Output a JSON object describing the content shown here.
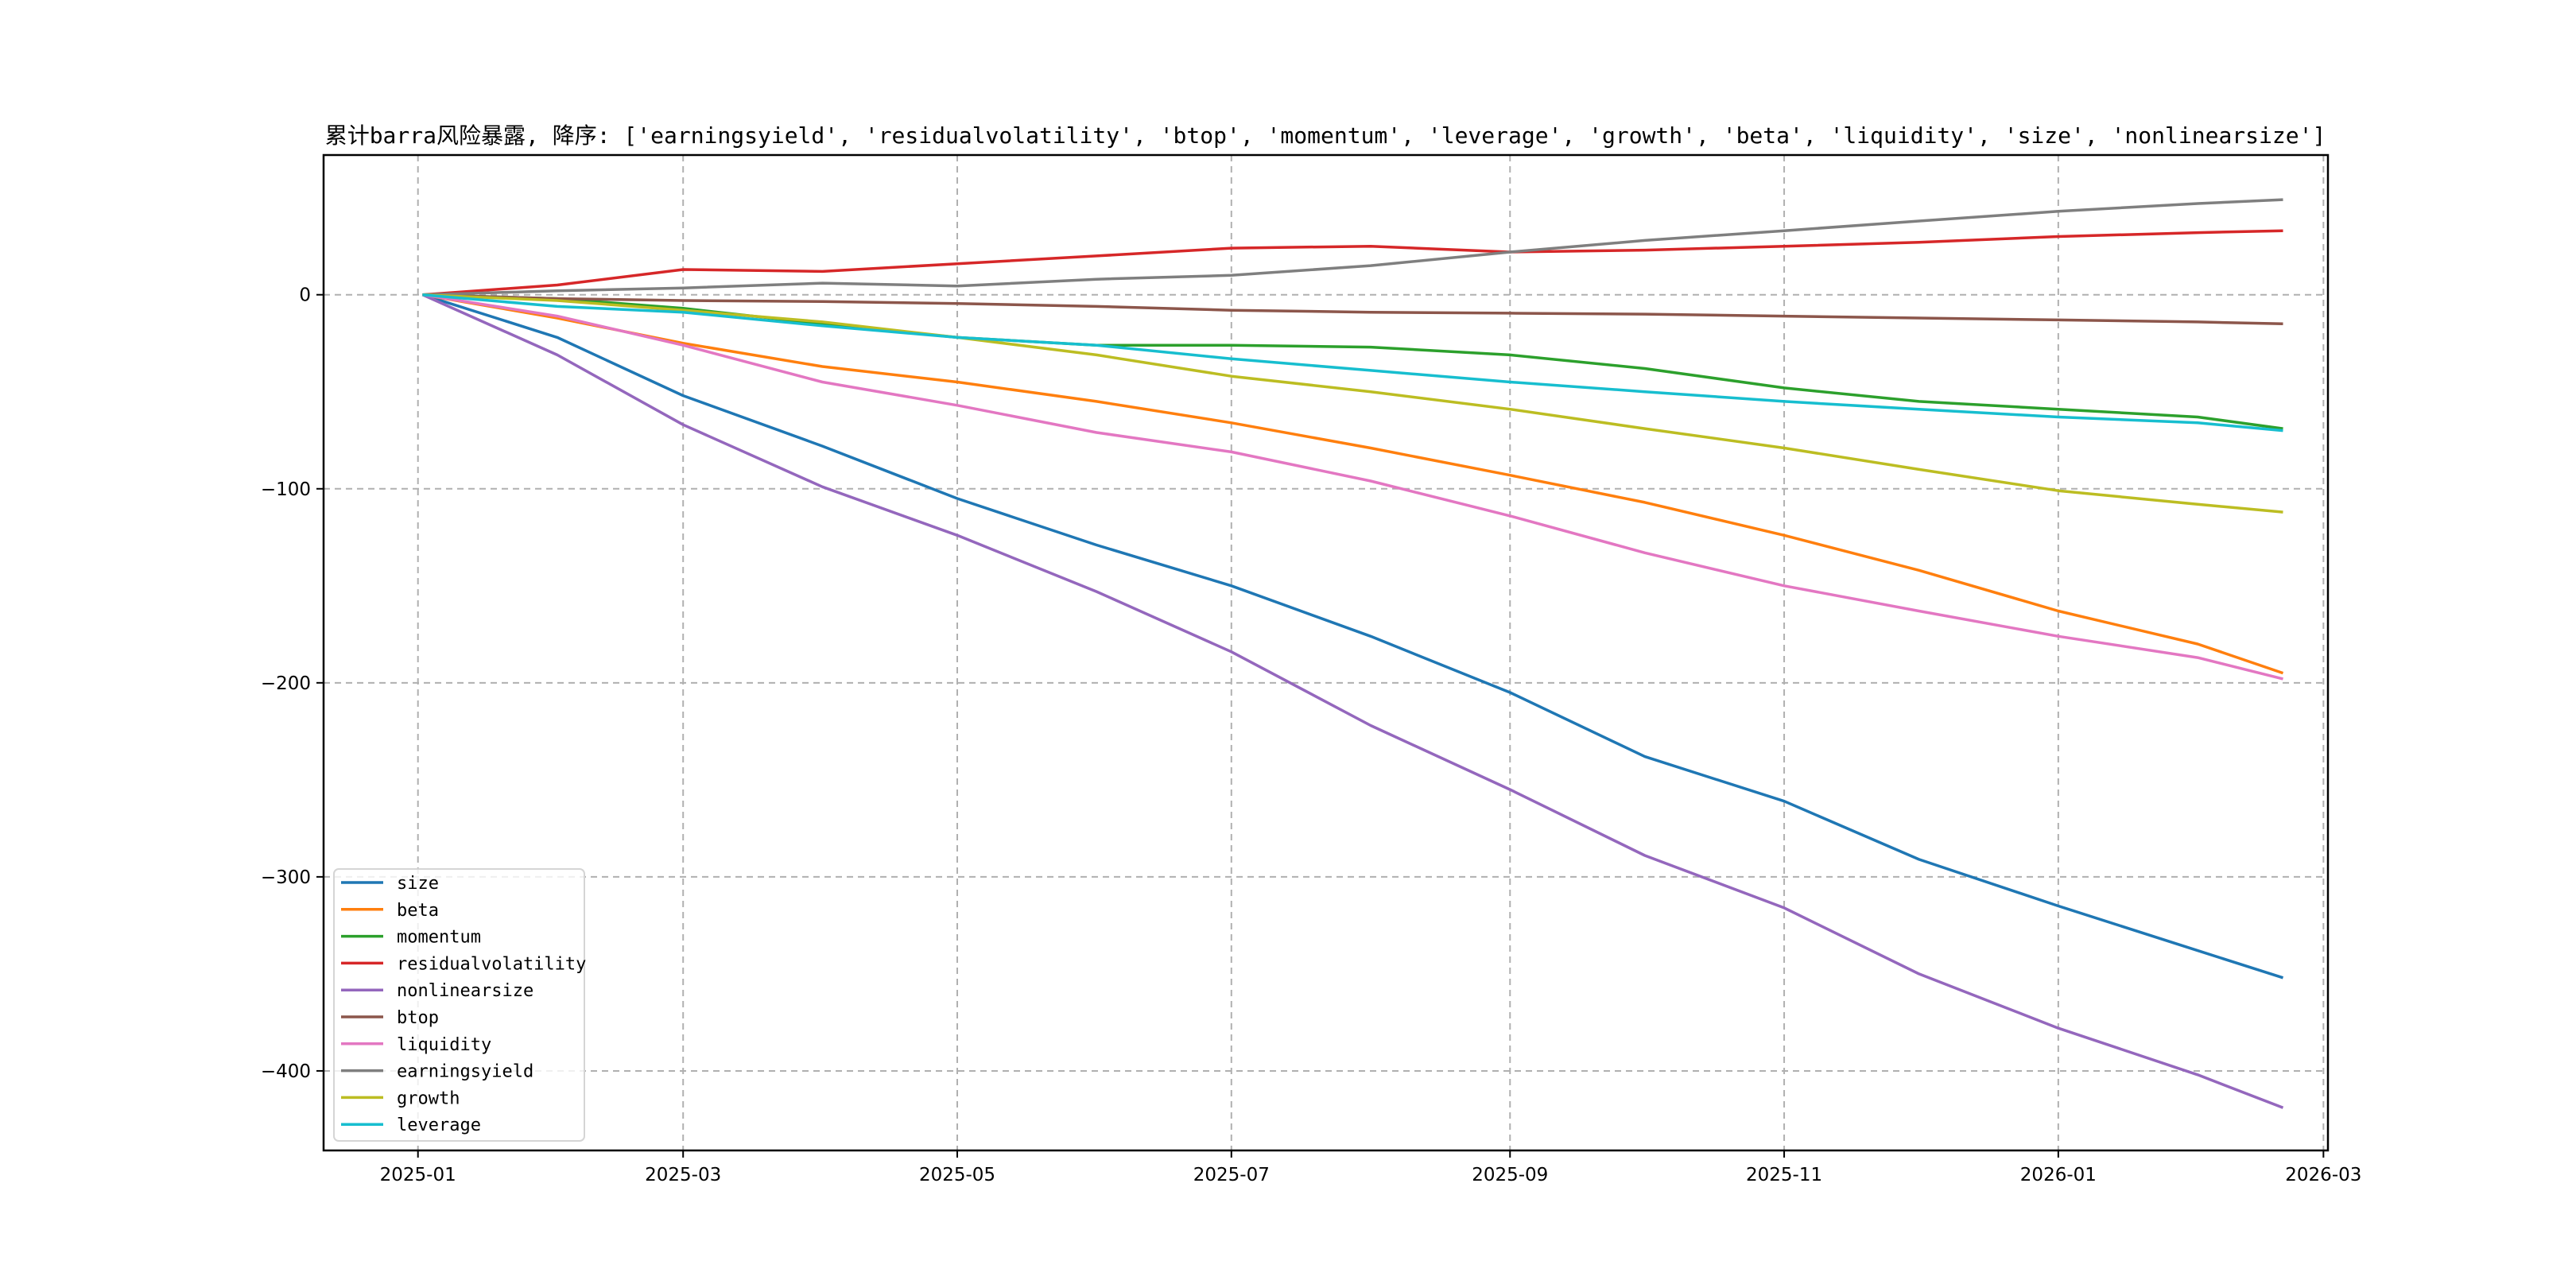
{
  "chart_data": {
    "type": "line",
    "title": "累计barra风险暴露, 降序: ['earningsyield', 'residualvolatility', 'btop', 'momentum', 'leverage', 'growth', 'beta', 'liquidity', 'size', 'nonlinearsize']",
    "xlabel": "",
    "ylabel": "",
    "xlim": [
      "2024-12-11",
      "2026-03-02"
    ],
    "ylim": [
      -441,
      72
    ],
    "grid": true,
    "legend_position": "lower-left",
    "x_ticks": [
      "2025-01",
      "2025-03",
      "2025-05",
      "2025-07",
      "2025-09",
      "2025-11",
      "2026-01",
      "2026-03"
    ],
    "y_ticks": [
      0,
      -100,
      -200,
      -300,
      -400
    ],
    "y_tick_labels": [
      "0",
      "−100",
      "−200",
      "−300",
      "−400"
    ],
    "x": [
      "2025-01-02",
      "2025-02-01",
      "2025-03-01",
      "2025-04-01",
      "2025-05-01",
      "2025-06-01",
      "2025-07-01",
      "2025-08-01",
      "2025-09-01",
      "2025-10-01",
      "2025-11-01",
      "2025-12-01",
      "2026-01-01",
      "2026-02-01",
      "2026-02-20"
    ],
    "series": [
      {
        "name": "size",
        "color": "#1f77b4",
        "values": [
          0,
          -22,
          -52,
          -78,
          -105,
          -129,
          -150,
          -176,
          -205,
          -238,
          -261,
          -291,
          -315,
          -338,
          -352
        ]
      },
      {
        "name": "beta",
        "color": "#ff7f0e",
        "values": [
          0,
          -12,
          -25,
          -37,
          -45,
          -55,
          -66,
          -79,
          -93,
          -107,
          -124,
          -142,
          -163,
          -180,
          -195
        ]
      },
      {
        "name": "momentum",
        "color": "#2ca02c",
        "values": [
          0,
          -2,
          -7,
          -15,
          -22,
          -26,
          -26,
          -27,
          -31,
          -38,
          -48,
          -55,
          -59,
          -63,
          -69
        ]
      },
      {
        "name": "residualvolatility",
        "color": "#d62728",
        "values": [
          0,
          5,
          13,
          12,
          16,
          20,
          24,
          25,
          22,
          23,
          25,
          27,
          30,
          32,
          33
        ]
      },
      {
        "name": "nonlinearsize",
        "color": "#9467bd",
        "values": [
          0,
          -31,
          -67,
          -99,
          -124,
          -153,
          -184,
          -222,
          -255,
          -289,
          -316,
          -350,
          -378,
          -402,
          -419
        ]
      },
      {
        "name": "btop",
        "color": "#8c564b",
        "values": [
          0,
          -2,
          -3,
          -3.5,
          -4.5,
          -6,
          -8,
          -9,
          -9.5,
          -10,
          -11,
          -12,
          -13,
          -14,
          -15
        ]
      },
      {
        "name": "liquidity",
        "color": "#e377c2",
        "values": [
          0,
          -11,
          -26,
          -45,
          -57,
          -71,
          -81,
          -96,
          -114,
          -133,
          -150,
          -163,
          -176,
          -187,
          -198
        ]
      },
      {
        "name": "earningsyield",
        "color": "#7f7f7f",
        "values": [
          0,
          2,
          3.5,
          6,
          4.5,
          8,
          10,
          15,
          22,
          28,
          33,
          38,
          43,
          47,
          49
        ]
      },
      {
        "name": "growth",
        "color": "#bcbd22",
        "values": [
          0,
          -3,
          -8,
          -14,
          -22,
          -31,
          -42,
          -50,
          -59,
          -69,
          -79,
          -90,
          -101,
          -108,
          -112
        ]
      },
      {
        "name": "leverage",
        "color": "#17becf",
        "values": [
          0,
          -6,
          -9,
          -16,
          -22,
          -26,
          -33,
          -39,
          -45,
          -50,
          -55,
          -59,
          -63,
          -66,
          -70
        ]
      }
    ]
  }
}
